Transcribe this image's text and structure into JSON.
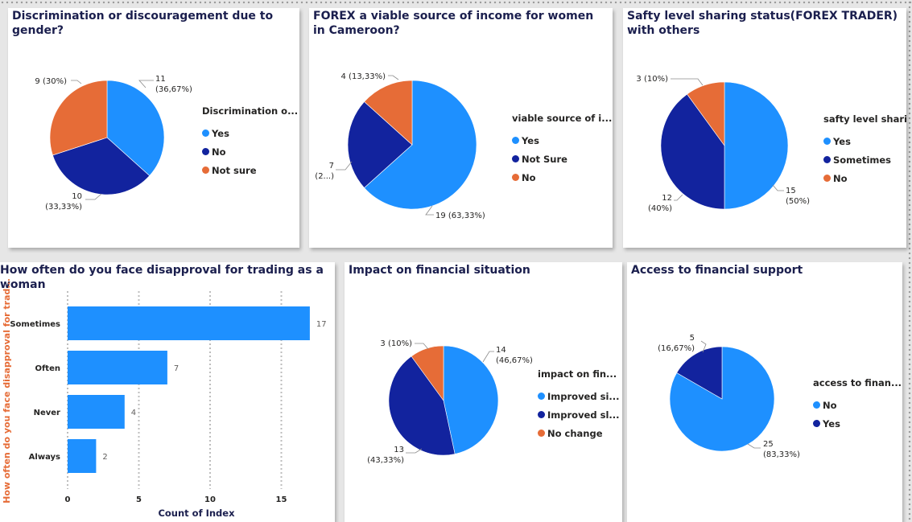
{
  "colors": {
    "light_blue": "#1e90ff",
    "dark_blue": "#12239e",
    "orange": "#e66c37"
  },
  "cards": {
    "gender": {
      "title": "Discrimination or discouragement due to gender?",
      "legend_title": "Discrimination o...",
      "labels": [
        [
          "11",
          "(36,67%)"
        ],
        [
          "10",
          "(33,33%)"
        ],
        [
          "9 (30%)"
        ]
      ]
    },
    "forex": {
      "title": "FOREX a viable source of income for women in Cameroon?",
      "legend_title": "viable source of i...",
      "labels": [
        [
          "19 (63,33%)"
        ],
        [
          "7",
          "(2...)"
        ],
        [
          "4 (13,33%)"
        ]
      ]
    },
    "safety": {
      "title": "Safty level sharing status(FOREX TRADER) with others",
      "legend_title": "safty level  shari...",
      "labels": [
        [
          "15",
          "(50%)"
        ],
        [
          "12",
          "(40%)"
        ],
        [
          "3 (10%)"
        ]
      ]
    },
    "disapproval": {
      "title": "How often do you face disapproval for trading as a woman",
      "xlabel": "Count of Index",
      "ylabel": "How often do you face disapproval for trad...",
      "value_labels": [
        "17",
        "7",
        "4",
        "2"
      ],
      "tick_labels": [
        "0",
        "5",
        "10",
        "15"
      ]
    },
    "impact": {
      "title": "Impact on financial situation",
      "legend_title": "impact on fin...",
      "labels": [
        [
          "14",
          "(46,67%)"
        ],
        [
          "13",
          "(43,33%)"
        ],
        [
          "3 (10%)"
        ]
      ]
    },
    "access": {
      "title": "Access to financial support",
      "legend_title": "access to finan...",
      "labels": [
        [
          "25",
          "(83,33%)"
        ],
        [
          "5",
          "(16,67%)"
        ]
      ]
    }
  },
  "chart_data": [
    {
      "type": "pie",
      "title": "Discrimination or discouragement due to gender?",
      "legend_title": "Discrimination o...",
      "categories": [
        "Yes",
        "No",
        "Not sure"
      ],
      "values": [
        11,
        10,
        9
      ],
      "percent_labels": [
        "36,67%",
        "33,33%",
        "30%"
      ],
      "colors": [
        "#1e90ff",
        "#12239e",
        "#e66c37"
      ],
      "legend_position": "right"
    },
    {
      "type": "pie",
      "title": "FOREX a viable source of income for women in Cameroon?",
      "legend_title": "viable source of i...",
      "categories": [
        "Yes",
        "Not Sure",
        "No"
      ],
      "values": [
        19,
        7,
        4
      ],
      "percent_labels": [
        "63,33%",
        "2...",
        "13,33%"
      ],
      "colors": [
        "#1e90ff",
        "#12239e",
        "#e66c37"
      ],
      "legend_position": "right"
    },
    {
      "type": "pie",
      "title": "Safty level sharing status(FOREX TRADER) with others",
      "legend_title": "safty level  shari...",
      "categories": [
        "Yes",
        "Sometimes",
        "No"
      ],
      "values": [
        15,
        12,
        3
      ],
      "percent_labels": [
        "50%",
        "40%",
        "10%"
      ],
      "colors": [
        "#1e90ff",
        "#12239e",
        "#e66c37"
      ],
      "legend_position": "right"
    },
    {
      "type": "bar",
      "orientation": "horizontal",
      "title": "How often do you face disapproval for trading as a woman",
      "categories": [
        "Sometimes",
        "Often",
        "Never",
        "Always"
      ],
      "values": [
        17,
        7,
        4,
        2
      ],
      "xlabel": "Count of Index",
      "ylabel": "How often do you face disapproval for trad...",
      "xlim": [
        0,
        18
      ],
      "xticks": [
        0,
        5,
        10,
        15
      ],
      "grid": "vertical dotted",
      "color": "#1e90ff"
    },
    {
      "type": "pie",
      "title": "Impact on financial situation",
      "legend_title": "impact on fin...",
      "categories": [
        "Improved si...",
        "Improved sl...",
        "No change"
      ],
      "values": [
        14,
        13,
        3
      ],
      "percent_labels": [
        "46,67%",
        "43,33%",
        "10%"
      ],
      "colors": [
        "#1e90ff",
        "#12239e",
        "#e66c37"
      ],
      "legend_position": "right"
    },
    {
      "type": "pie",
      "title": "Access to financial support",
      "legend_title": "access to finan...",
      "categories": [
        "No",
        "Yes"
      ],
      "values": [
        25,
        5
      ],
      "percent_labels": [
        "83,33%",
        "16,67%"
      ],
      "colors": [
        "#1e90ff",
        "#12239e"
      ],
      "legend_position": "right"
    }
  ]
}
